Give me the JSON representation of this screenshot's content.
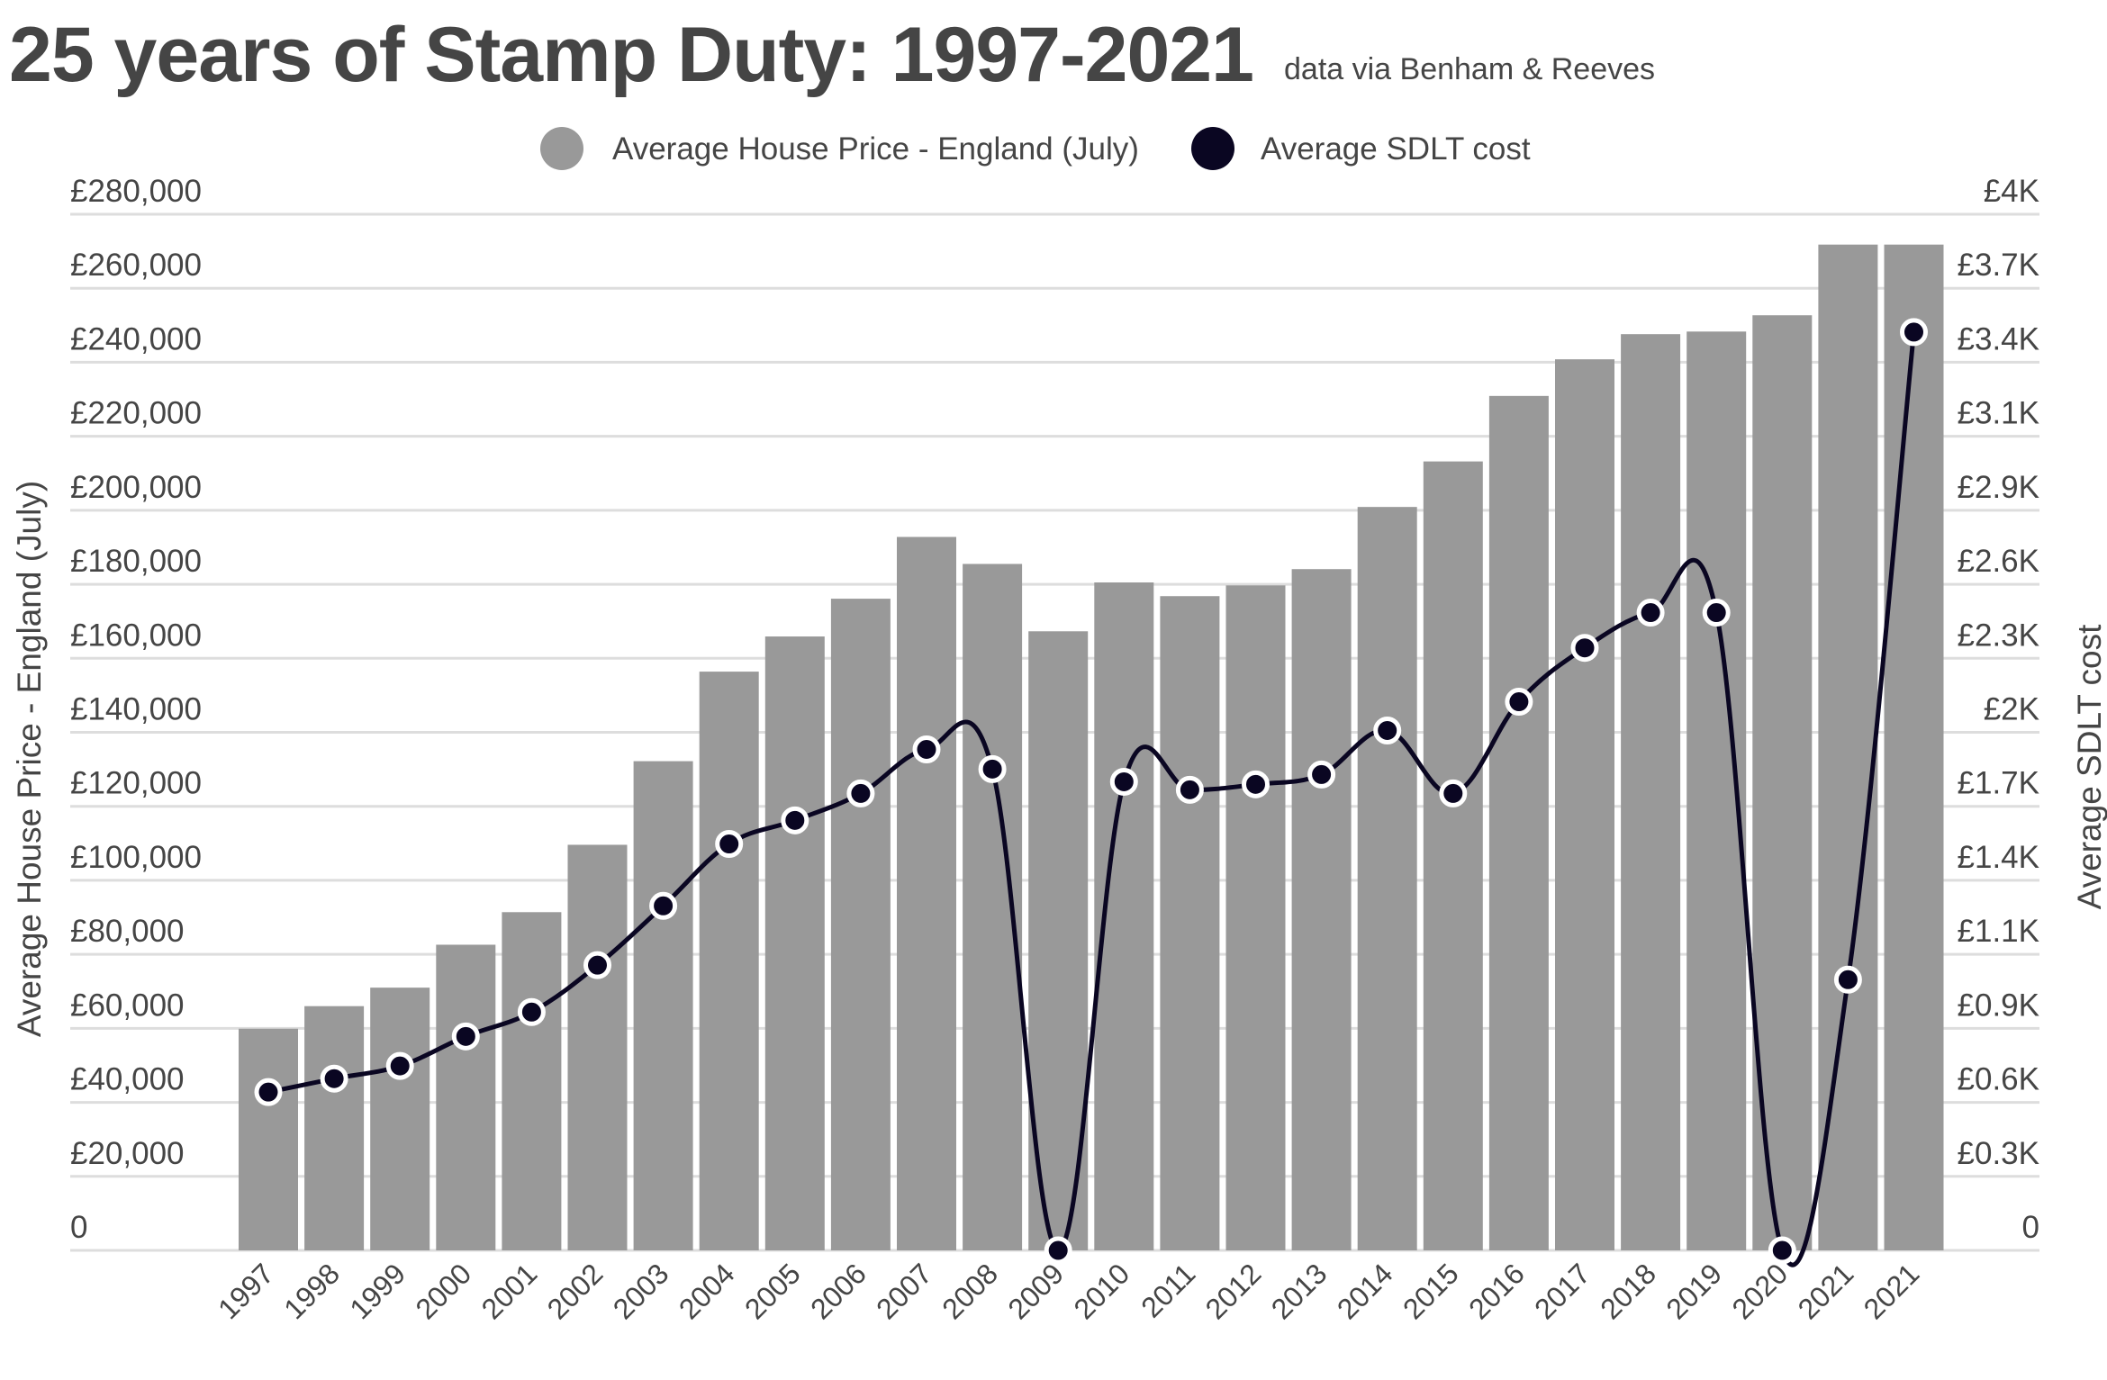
{
  "chart_data": {
    "type": "bar+line",
    "title": "25 years of Stamp Duty: 1997-2021",
    "subtitle": "data via Benham & Reeves",
    "categories": [
      "1997",
      "1998",
      "1999",
      "2000",
      "2001",
      "2002",
      "2003",
      "2004",
      "2005",
      "2006",
      "2007",
      "2008",
      "2009",
      "2010",
      "2011",
      "2012",
      "2013",
      "2014",
      "2015",
      "2016",
      "2017",
      "2018",
      "2019",
      "2020",
      "2021",
      "2021"
    ],
    "series": [
      {
        "name": "Average House Price - England (July)",
        "type": "bar",
        "axis": "left",
        "color": "#999999",
        "values": [
          59900,
          66000,
          71000,
          82600,
          91400,
          109600,
          132200,
          156400,
          165900,
          176100,
          192800,
          185500,
          167300,
          180500,
          176800,
          179700,
          184100,
          200900,
          213200,
          230900,
          240800,
          247600,
          248300,
          252700,
          271800,
          271800
        ]
      },
      {
        "name": "Average SDLT cost",
        "type": "line",
        "axis": "right",
        "color": "#0a0622",
        "values": [
          611,
          663,
          712,
          826,
          920,
          1101,
          1330,
          1569,
          1660,
          1764,
          1934,
          1858,
          0,
          1809,
          1778,
          1799,
          1837,
          2007,
          1764,
          2118,
          2326,
          2462,
          2462,
          0,
          1045,
          3545
        ]
      }
    ],
    "left_axis": {
      "label": "Average House Price - England (July)",
      "ylim": [
        0,
        280000
      ],
      "ticks": [
        0,
        20000,
        40000,
        60000,
        80000,
        100000,
        120000,
        140000,
        160000,
        180000,
        200000,
        220000,
        240000,
        260000,
        280000
      ],
      "tick_labels": [
        "0",
        "£20,000",
        "£40,000",
        "£60,000",
        "£80,000",
        "£100,000",
        "£120,000",
        "£140,000",
        "£160,000",
        "£180,000",
        "£200,000",
        "£220,000",
        "£240,000",
        "£260,000",
        "£280,000"
      ]
    },
    "right_axis": {
      "label": "Average SDLT cost",
      "ylim": [
        0,
        4000
      ],
      "tick_labels": [
        "0",
        "£0.3K",
        "£0.6K",
        "£0.9K",
        "£1.1K",
        "£1.4K",
        "£1.7K",
        "£2K",
        "£2.3K",
        "£2.6K",
        "£2.9K",
        "£3.1K",
        "£3.4K",
        "£3.7K",
        "£4K"
      ]
    },
    "legend": {
      "position": "top-center",
      "entries": [
        {
          "label": "Average House Price - England (July)",
          "color": "#999999"
        },
        {
          "label": "Average SDLT cost",
          "color": "#0a0622"
        }
      ]
    },
    "grid": true,
    "xlabel_rotation": "-45"
  }
}
